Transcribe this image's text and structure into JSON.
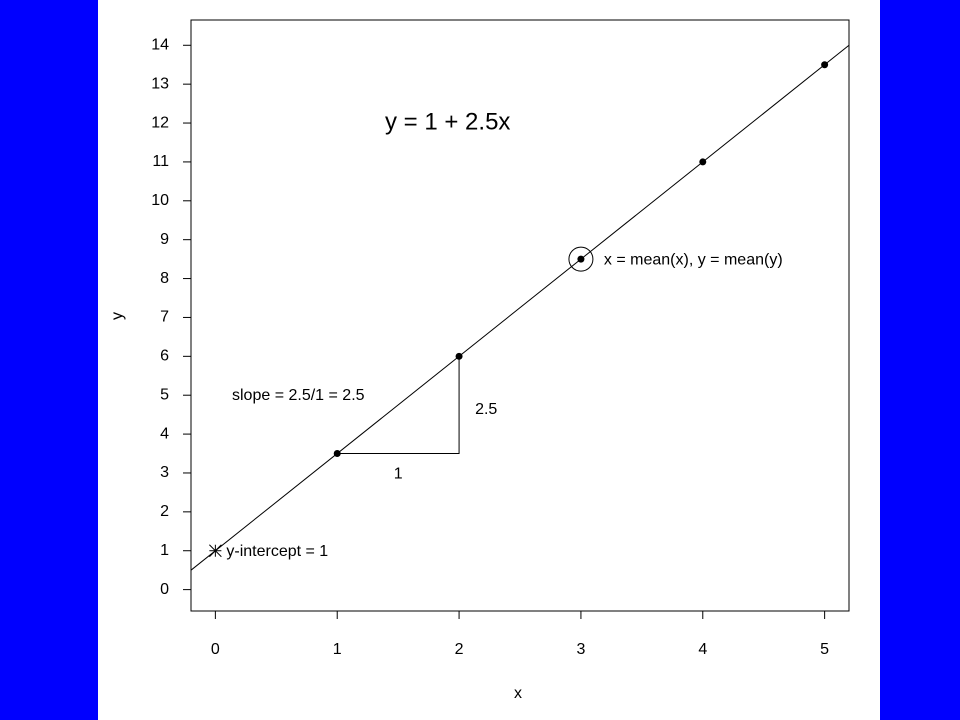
{
  "chart_data": {
    "type": "scatter",
    "equation": "y = 1 + 2.5x",
    "xlabel": "x",
    "ylabel": "y",
    "x": [
      1,
      2,
      3,
      4,
      5
    ],
    "series": [
      {
        "values": [
          3.5,
          6,
          8.5,
          11,
          13.5
        ],
        "color": "#000000"
      }
    ],
    "xlim": [
      -0.2,
      5.2
    ],
    "ylim": [
      -0.55,
      14.65
    ],
    "xticks": [
      0,
      1,
      2,
      3,
      4,
      5
    ],
    "yticks": [
      0,
      1,
      2,
      3,
      4,
      5,
      6,
      7,
      8,
      9,
      10,
      11,
      12,
      13,
      14
    ],
    "line": {
      "intercept": 1,
      "slope": 2.5
    },
    "intercept_point": {
      "x": 0,
      "y": 1,
      "label": "y-intercept = 1"
    },
    "mean_point": {
      "x": 3,
      "y": 8.5,
      "label": "x = mean(x), y = mean(y)"
    },
    "slope_triangle": {
      "x0": 1,
      "y0": 3.5,
      "run": 1,
      "rise": 2.5,
      "label": "slope = 2.5/1 = 2.5"
    }
  }
}
